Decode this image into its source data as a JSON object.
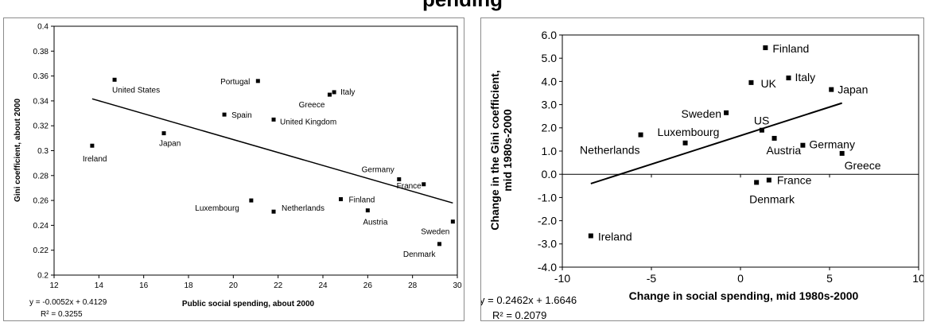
{
  "page": {
    "partial_title": "pending"
  },
  "chart_data": [
    {
      "type": "scatter",
      "title": "",
      "xlabel": "Public social spending, about 2000",
      "ylabel": "Gini coefficient, about 2000",
      "xlim": [
        12,
        30
      ],
      "ylim": [
        0.2,
        0.4
      ],
      "xticks": [
        12,
        14,
        16,
        18,
        20,
        22,
        24,
        26,
        28,
        30
      ],
      "yticks": [
        "0.2",
        "0.22",
        "0.24",
        "0.26",
        "0.28",
        "0.3",
        "0.32",
        "0.34",
        "0.36",
        "0.38",
        "0.4"
      ],
      "grid": false,
      "points": [
        {
          "label": "United States",
          "x": 14.7,
          "y": 0.357
        },
        {
          "label": "Portugal",
          "x": 21.1,
          "y": 0.356
        },
        {
          "label": "Greece",
          "x": 24.3,
          "y": 0.345
        },
        {
          "label": "Italy",
          "x": 24.5,
          "y": 0.347
        },
        {
          "label": "Spain",
          "x": 19.6,
          "y": 0.329
        },
        {
          "label": "United Kingdom",
          "x": 21.8,
          "y": 0.325
        },
        {
          "label": "Japan",
          "x": 16.9,
          "y": 0.314
        },
        {
          "label": "Ireland",
          "x": 13.7,
          "y": 0.304
        },
        {
          "label": "Germany",
          "x": 27.4,
          "y": 0.277
        },
        {
          "label": "France",
          "x": 28.5,
          "y": 0.273
        },
        {
          "label": "Finland",
          "x": 24.8,
          "y": 0.261
        },
        {
          "label": "Luxembourg",
          "x": 20.8,
          "y": 0.26
        },
        {
          "label": "Netherlands",
          "x": 21.8,
          "y": 0.251
        },
        {
          "label": "Austria",
          "x": 26.0,
          "y": 0.252
        },
        {
          "label": "Sweden",
          "x": 29.8,
          "y": 0.243
        },
        {
          "label": "Denmark",
          "x": 29.2,
          "y": 0.225
        }
      ],
      "trendline": {
        "slope": -0.0052,
        "intercept": 0.4129,
        "x_range": [
          13.7,
          29.8
        ]
      },
      "equation": "y = -0.0052x + 0.4129",
      "r_squared": "R² = 0.3255"
    },
    {
      "type": "scatter",
      "title": "",
      "xlabel": "Change in social spending, mid 1980s-2000",
      "ylabel": "Change in the Gini coefficient, mid 1980s-2000",
      "xlim": [
        -10,
        10
      ],
      "ylim": [
        -4,
        6
      ],
      "xticks": [
        "-10",
        "-5",
        "0",
        "5",
        "10"
      ],
      "yticks": [
        "-4.0",
        "-3.0",
        "-2.0",
        "-1.0",
        "0.0",
        "1.0",
        "2.0",
        "3.0",
        "4.0",
        "5.0",
        "6.0"
      ],
      "grid": false,
      "points": [
        {
          "label": "Finland",
          "x": 1.4,
          "y": 5.45
        },
        {
          "label": "UK",
          "x": 0.6,
          "y": 3.95
        },
        {
          "label": "Italy",
          "x": 2.7,
          "y": 4.15
        },
        {
          "label": "Japan",
          "x": 5.1,
          "y": 3.65
        },
        {
          "label": "Sweden",
          "x": -0.8,
          "y": 2.65
        },
        {
          "label": "US",
          "x": 1.2,
          "y": 1.9
        },
        {
          "label": "Netherlands",
          "x": -5.6,
          "y": 1.7
        },
        {
          "label": "Luxembourg",
          "x": -3.1,
          "y": 1.35
        },
        {
          "label": "Austria",
          "x": 1.9,
          "y": 1.55
        },
        {
          "label": "Germany",
          "x": 3.5,
          "y": 1.25
        },
        {
          "label": "Greece",
          "x": 5.7,
          "y": 0.9
        },
        {
          "label": "France",
          "x": 1.6,
          "y": -0.25
        },
        {
          "label": "Denmark",
          "x": 0.9,
          "y": -0.35
        },
        {
          "label": "Ireland",
          "x": -8.4,
          "y": -2.65
        }
      ],
      "trendline": {
        "slope": 0.2462,
        "intercept": 1.6646,
        "x_range": [
          -8.4,
          5.7
        ]
      },
      "equation": "y = 0.2462x + 1.6646",
      "r_squared": "R² = 0.2079"
    }
  ]
}
